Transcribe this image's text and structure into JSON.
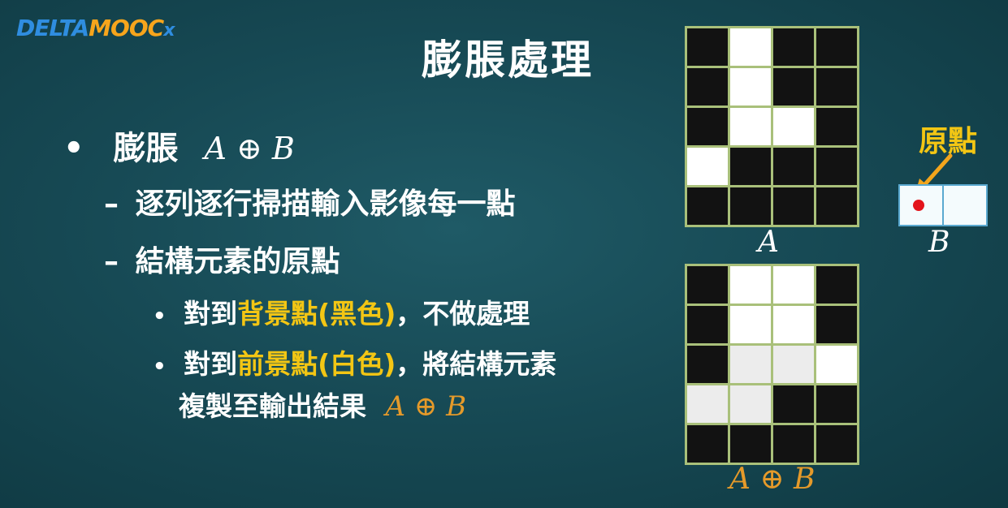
{
  "logo": {
    "part1": "DELTA",
    "part2": "MOOC",
    "part3": "x"
  },
  "title": "膨脹處理",
  "bullets": {
    "l1_text": "膨脹",
    "l1_math": "A ⊕ B",
    "l2_text": "逐列逐行掃描輸入影像每一點",
    "l3_text": "結構元素的原點",
    "l4_a": "對到",
    "l4_hl": "背景點(黑色)",
    "l4_b": "，不做處理",
    "l5_a": "對到",
    "l5_hl": "前景點(白色)",
    "l5_b": "，將結構元素",
    "l6_text": "複製至輸出結果",
    "l6_math": "A ⊕ B",
    "dash": "–",
    "dot": "•"
  },
  "figures": {
    "grid_a_label": "A",
    "grid_b_label": "B",
    "grid_result_label": "A ⊕ B",
    "origin_label": "原點",
    "grid_a": [
      [
        "b",
        "w",
        "b",
        "b"
      ],
      [
        "b",
        "w",
        "b",
        "b"
      ],
      [
        "b",
        "w",
        "w",
        "b"
      ],
      [
        "w",
        "b",
        "b",
        "b"
      ],
      [
        "b",
        "b",
        "b",
        "b"
      ]
    ],
    "grid_result": [
      [
        "b",
        "w",
        "w",
        "b"
      ],
      [
        "b",
        "w",
        "w",
        "b"
      ],
      [
        "b",
        "l",
        "l",
        "w"
      ],
      [
        "l",
        "l",
        "b",
        "b"
      ],
      [
        "b",
        "b",
        "b",
        "b"
      ]
    ]
  },
  "colors": {
    "background": "#174a55",
    "highlight": "#f3c614",
    "math_orange": "#e59a2a",
    "origin_dot": "#e3141b",
    "grid_line": "#a9c07a"
  }
}
